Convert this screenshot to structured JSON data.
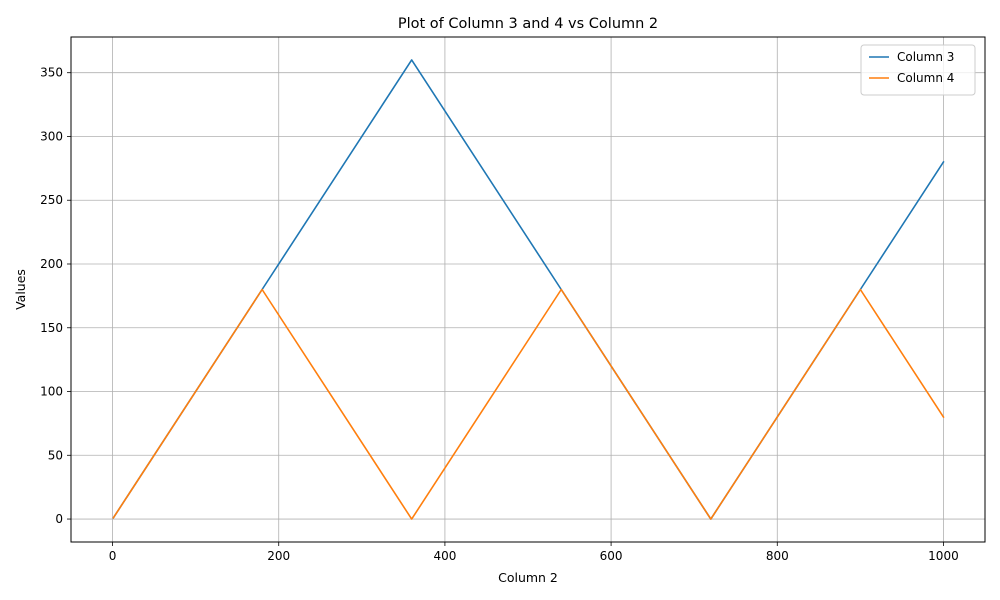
{
  "chart_data": {
    "type": "line",
    "title": "Plot of Column 3 and 4 vs Column 2",
    "xlabel": "Column 2",
    "ylabel": "Values",
    "xlim": [
      -50,
      1050
    ],
    "ylim": [
      -18,
      378
    ],
    "xticks": [
      0,
      200,
      400,
      600,
      800,
      1000
    ],
    "yticks": [
      0,
      50,
      100,
      150,
      200,
      250,
      300,
      350
    ],
    "grid": true,
    "legend_position": "top-right",
    "series": [
      {
        "name": "Column 3",
        "color": "#1f77b4",
        "x": [
          1,
          180,
          360,
          540,
          720,
          900,
          1000
        ],
        "y": [
          1,
          180,
          360,
          180,
          0,
          180,
          280
        ]
      },
      {
        "name": "Column 4",
        "color": "#ff7f0e",
        "x": [
          1,
          180,
          360,
          540,
          720,
          900,
          1000
        ],
        "y": [
          1,
          180,
          0,
          180,
          0,
          180,
          80
        ]
      }
    ]
  }
}
